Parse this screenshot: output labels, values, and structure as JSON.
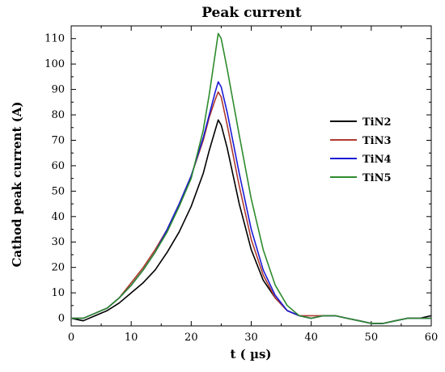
{
  "chart_data": {
    "type": "line",
    "title": "Peak current",
    "xlabel": "t ( µs)",
    "ylabel": "Cathod peak current (A)",
    "xlim": [
      0,
      60
    ],
    "ylim": [
      -3,
      115
    ],
    "x_ticks": [
      0,
      10,
      20,
      30,
      40,
      50,
      60
    ],
    "y_ticks": [
      0,
      10,
      20,
      30,
      40,
      50,
      60,
      70,
      80,
      90,
      100,
      110
    ],
    "grid": false,
    "legend_position": "right",
    "series": [
      {
        "name": "TiN2",
        "color": "#000000",
        "x": [
          0,
          2,
          4,
          6,
          8,
          10,
          12,
          14,
          16,
          18,
          20,
          22,
          23,
          24,
          24.5,
          25,
          26,
          28,
          30,
          32,
          34,
          36,
          38,
          40,
          42,
          44,
          46,
          48,
          50,
          52,
          54,
          56,
          58,
          60
        ],
        "y": [
          0,
          -1,
          1,
          3,
          6,
          10,
          14,
          19,
          26,
          34,
          44,
          57,
          66,
          74,
          78,
          76,
          67,
          45,
          27,
          15,
          8,
          3,
          1,
          0,
          1,
          1,
          0,
          -1,
          -2,
          -2,
          -1,
          0,
          0,
          1
        ]
      },
      {
        "name": "TiN3",
        "color": "#b03a2e",
        "x": [
          0,
          2,
          4,
          6,
          8,
          10,
          12,
          14,
          16,
          18,
          20,
          22,
          23,
          24,
          24.5,
          25,
          26,
          28,
          30,
          32,
          34,
          36,
          38,
          40,
          42,
          44,
          46,
          48,
          50,
          52,
          54,
          56,
          58,
          60
        ],
        "y": [
          0,
          0,
          2,
          4,
          8,
          14,
          20,
          27,
          35,
          45,
          56,
          70,
          79,
          86,
          89,
          87,
          76,
          52,
          31,
          17,
          8,
          3,
          1,
          1,
          1,
          1,
          0,
          -1,
          -2,
          -2,
          -1,
          0,
          0,
          0
        ]
      },
      {
        "name": "TiN4",
        "color": "#1a1ad6",
        "x": [
          0,
          2,
          4,
          6,
          8,
          10,
          12,
          14,
          16,
          18,
          20,
          22,
          23,
          24,
          24.5,
          25,
          26,
          28,
          30,
          32,
          34,
          36,
          38,
          40,
          42,
          44,
          46,
          48,
          50,
          52,
          54,
          56,
          58,
          60
        ],
        "y": [
          0,
          0,
          2,
          4,
          8,
          13,
          19,
          26,
          35,
          45,
          56,
          71,
          80,
          89,
          93,
          91,
          81,
          57,
          35,
          19,
          9,
          3,
          1,
          0,
          1,
          1,
          0,
          -1,
          -2,
          -2,
          -1,
          0,
          0,
          0
        ]
      },
      {
        "name": "TiN5",
        "color": "#2e8b2e",
        "x": [
          0,
          2,
          4,
          6,
          8,
          10,
          12,
          14,
          16,
          18,
          20,
          22,
          23,
          24,
          24.5,
          25,
          26,
          28,
          30,
          32,
          34,
          36,
          38,
          40,
          42,
          44,
          46,
          48,
          50,
          52,
          54,
          56,
          58,
          60
        ],
        "y": [
          0,
          0,
          2,
          4,
          8,
          13,
          19,
          26,
          34,
          44,
          55,
          74,
          88,
          104,
          112,
          110,
          98,
          72,
          47,
          27,
          13,
          5,
          1,
          0,
          1,
          1,
          0,
          -1,
          -2,
          -2,
          -1,
          0,
          0,
          0
        ]
      }
    ]
  }
}
